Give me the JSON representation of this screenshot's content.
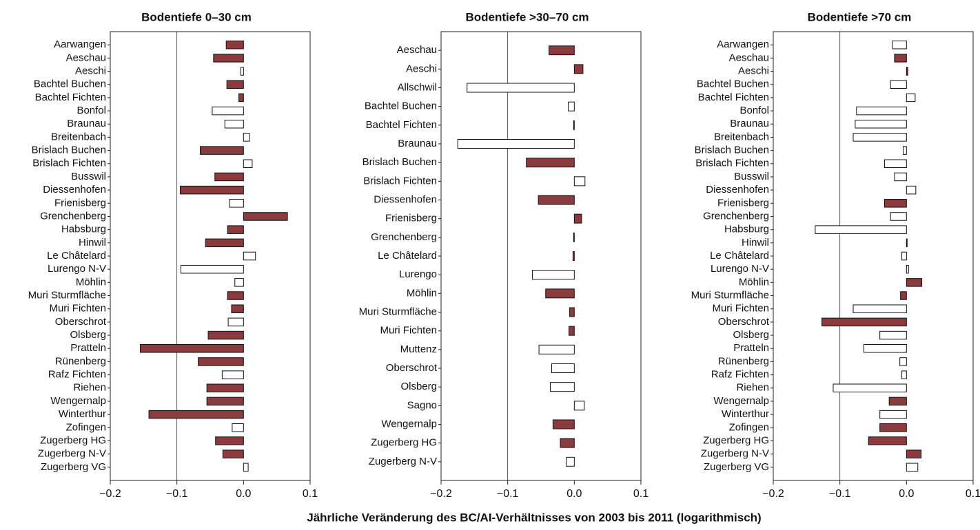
{
  "xlabel": "Jährliche Veränderung des BC/AI-Verhältnisses von 2003 bis 2011 (logarithmisch)",
  "chart_data": [
    {
      "type": "hbar",
      "title": "Bodentiefe 0–30 cm",
      "categories": [
        "Aarwangen",
        "Aeschau",
        "Aeschi",
        "Bachtel Buchen",
        "Bachtel Fichten",
        "Bonfol",
        "Braunau",
        "Breitenbach",
        "Brislach Buchen",
        "Brislach Fichten",
        "Busswil",
        "Diessenhofen",
        "Frienisberg",
        "Grenchenberg",
        "Habsburg",
        "Hinwil",
        "Le Châtelard",
        "Lurengo N-V",
        "Möhlin",
        "Muri Sturmfläche",
        "Muri Fichten",
        "Oberschrot",
        "Olsberg",
        "Pratteln",
        "Rünenberg",
        "Rafz Fichten",
        "Riehen",
        "Wengernalp",
        "Winterthur",
        "Zofingen",
        "Zugerberg HG",
        "Zugerberg N-V",
        "Zugerberg VG"
      ],
      "values": [
        -0.026,
        -0.045,
        -0.004,
        -0.025,
        -0.007,
        -0.047,
        -0.028,
        0.009,
        -0.065,
        0.013,
        -0.043,
        -0.095,
        -0.021,
        0.066,
        -0.024,
        -0.057,
        0.018,
        -0.094,
        -0.013,
        -0.024,
        -0.018,
        -0.023,
        -0.053,
        -0.155,
        -0.068,
        -0.032,
        -0.055,
        -0.055,
        -0.142,
        -0.017,
        -0.042,
        -0.031,
        0.007
      ],
      "colors": [
        "#8b3a3e",
        "#8b3a3e",
        "#ffffff",
        "#8b3a3e",
        "#8b3a3e",
        "#ffffff",
        "#ffffff",
        "#ffffff",
        "#8b3a3e",
        "#ffffff",
        "#8b3a3e",
        "#8b3a3e",
        "#ffffff",
        "#8b3a3e",
        "#8b3a3e",
        "#8b3a3e",
        "#ffffff",
        "#ffffff",
        "#ffffff",
        "#8b3a3e",
        "#8b3a3e",
        "#ffffff",
        "#8b3a3e",
        "#8b3a3e",
        "#8b3a3e",
        "#ffffff",
        "#8b3a3e",
        "#8b3a3e",
        "#8b3a3e",
        "#ffffff",
        "#8b3a3e",
        "#8b3a3e",
        "#ffffff"
      ],
      "xlim": [
        -0.2,
        0.1
      ],
      "xticks": [
        {
          "value": -0.2,
          "label": "−0.2"
        },
        {
          "value": -0.1,
          "label": "−0.1"
        },
        {
          "value": 0,
          "label": "0.0"
        },
        0.1
      ],
      "grid_lines": [
        -0.1
      ]
    },
    {
      "type": "hbar",
      "title": "Bodentiefe >30–70 cm",
      "categories": [
        "Aeschau",
        "Aeschi",
        "Allschwil",
        "Bachtel Buchen",
        "Bachtel Fichten",
        "Braunau",
        "Brislach Buchen",
        "Brislach Fichten",
        "Diessenhofen",
        "Frienisberg",
        "Grenchenberg",
        "Le Châtelard",
        "Lurengo",
        "Möhlin",
        "Muri Sturmfläche",
        "Muri Fichten",
        "Muttenz",
        "Oberschrot",
        "Olsberg",
        "Sagno",
        "Wengernalp",
        "Zugerberg HG",
        "Zugerberg N-V"
      ],
      "values": [
        -0.038,
        0.013,
        -0.161,
        -0.009,
        -0.001,
        -0.175,
        -0.072,
        0.016,
        -0.054,
        0.011,
        -0.001,
        -0.002,
        -0.063,
        -0.043,
        -0.007,
        -0.008,
        -0.053,
        -0.034,
        -0.036,
        0.015,
        -0.032,
        -0.021,
        -0.012
      ],
      "colors": [
        "#8b3a3e",
        "#8b3a3e",
        "#ffffff",
        "#ffffff",
        "#ffffff",
        "#ffffff",
        "#8b3a3e",
        "#ffffff",
        "#8b3a3e",
        "#8b3a3e",
        "#8b3a3e",
        "#8b3a3e",
        "#ffffff",
        "#8b3a3e",
        "#8b3a3e",
        "#8b3a3e",
        "#ffffff",
        "#ffffff",
        "#ffffff",
        "#ffffff",
        "#8b3a3e",
        "#8b3a3e",
        "#ffffff"
      ],
      "xlim": [
        -0.2,
        0.1
      ],
      "xticks": [
        {
          "value": -0.2,
          "label": "−0.2"
        },
        {
          "value": -0.1,
          "label": "−0.1"
        },
        {
          "value": 0,
          "label": "0.0"
        },
        0.1
      ],
      "grid_lines": [
        -0.1
      ]
    },
    {
      "type": "hbar",
      "title": "Bodentiefe >70 cm",
      "categories": [
        "Aarwangen",
        "Aeschau",
        "Aeschi",
        "Bachtel Buchen",
        "Bachtel Fichten",
        "Bonfol",
        "Braunau",
        "Breitenbach",
        "Brislach Buchen",
        "Brislach Fichten",
        "Busswil",
        "Diessenhofen",
        "Frienisberg",
        "Grenchenberg",
        "Habsburg",
        "Hinwil",
        "Le Châtelard",
        "Lurengo N-V",
        "Möhlin",
        "Muri Sturmfläche",
        "Muri Fichten",
        "Oberschrot",
        "Olsberg",
        "Pratteln",
        "Rünenberg",
        "Rafz Fichten",
        "Riehen",
        "Wengernalp",
        "Winterthur",
        "Zofingen",
        "Zugerberg HG",
        "Zugerberg N-V",
        "Zugerberg VG"
      ],
      "values": [
        -0.021,
        -0.018,
        0.002,
        -0.024,
        0.013,
        -0.075,
        -0.077,
        -0.08,
        -0.005,
        -0.033,
        -0.018,
        0.014,
        -0.033,
        -0.024,
        -0.137,
        0.001,
        -0.007,
        0.003,
        0.023,
        -0.009,
        -0.08,
        -0.127,
        -0.04,
        -0.064,
        -0.01,
        -0.007,
        -0.11,
        -0.026,
        -0.04,
        -0.04,
        -0.057,
        0.022,
        0.017
      ],
      "colors": [
        "#ffffff",
        "#8b3a3e",
        "#8b3a3e",
        "#ffffff",
        "#ffffff",
        "#ffffff",
        "#ffffff",
        "#ffffff",
        "#ffffff",
        "#ffffff",
        "#ffffff",
        "#ffffff",
        "#8b3a3e",
        "#ffffff",
        "#ffffff",
        "#ffffff",
        "#ffffff",
        "#ffffff",
        "#8b3a3e",
        "#8b3a3e",
        "#ffffff",
        "#8b3a3e",
        "#ffffff",
        "#ffffff",
        "#ffffff",
        "#ffffff",
        "#ffffff",
        "#8b3a3e",
        "#ffffff",
        "#8b3a3e",
        "#8b3a3e",
        "#8b3a3e",
        "#ffffff"
      ],
      "xlim": [
        -0.2,
        0.1
      ],
      "xticks": [
        {
          "value": -0.2,
          "label": "−0.2"
        },
        {
          "value": -0.1,
          "label": "−0.1"
        },
        {
          "value": 0,
          "label": "0.0"
        },
        0.1
      ],
      "grid_lines": [
        -0.1
      ]
    }
  ]
}
